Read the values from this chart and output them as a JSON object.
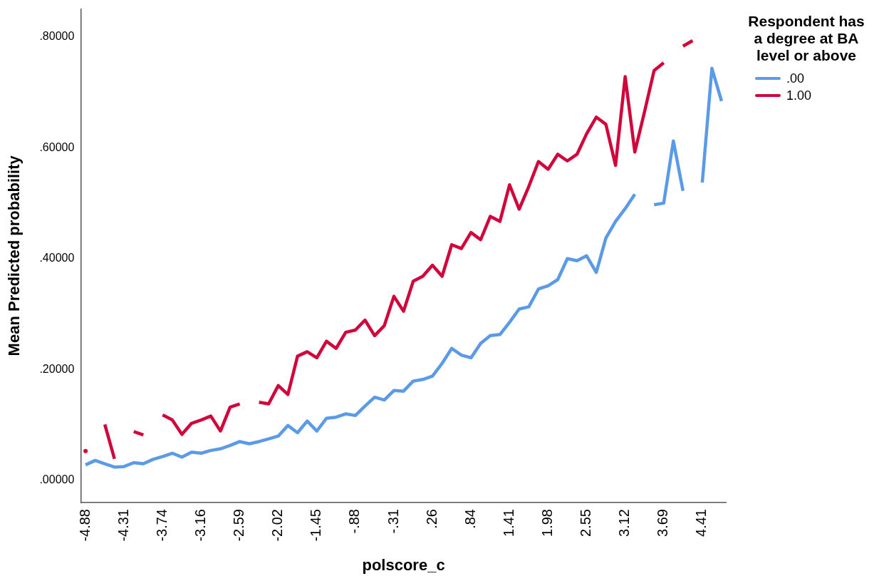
{
  "chart_data": {
    "type": "line",
    "xlabel": "polscore_c",
    "ylabel": "Mean Predicted probability",
    "legend_title": "Respondent has a degree at BA level or above",
    "legend": "top right",
    "grid": false,
    "line_style": "solid",
    "categories": [
      "-4.88",
      null,
      null,
      null,
      "-4.31",
      null,
      null,
      null,
      "-3.74",
      null,
      null,
      null,
      "-3.16",
      null,
      null,
      null,
      "-2.59",
      null,
      null,
      null,
      "-2.02",
      null,
      null,
      null,
      "-1.45",
      null,
      null,
      null,
      "-.88",
      null,
      null,
      null,
      "-.31",
      null,
      null,
      null,
      ".26",
      null,
      null,
      null,
      ".84",
      null,
      null,
      null,
      "1.41",
      null,
      null,
      null,
      "1.98",
      null,
      null,
      null,
      "2.55",
      null,
      null,
      null,
      "3.12",
      null,
      null,
      null,
      "3.69",
      null,
      null,
      null,
      "4.41",
      null,
      null
    ],
    "ylim": [
      -0.04,
      0.85
    ],
    "yticks": [
      {
        "value": 0,
        "label": ".00000"
      },
      {
        "value": 0.2,
        "label": ".20000"
      },
      {
        "value": 0.4,
        "label": ".40000"
      },
      {
        "value": 0.6,
        "label": ".60000"
      },
      {
        "value": 0.8,
        "label": ".80000"
      }
    ],
    "series": [
      {
        "name": ".00",
        "color": "#5a9ae6",
        "values": [
          0.028,
          0.036,
          0.03,
          0.024,
          0.025,
          0.032,
          0.03,
          0.038,
          0.043,
          0.049,
          0.042,
          0.051,
          0.049,
          0.054,
          0.057,
          0.063,
          0.07,
          0.066,
          0.07,
          0.075,
          0.08,
          0.099,
          0.086,
          0.107,
          0.089,
          0.112,
          0.114,
          0.12,
          0.117,
          0.134,
          0.15,
          0.145,
          0.162,
          0.161,
          0.179,
          0.182,
          0.188,
          0.211,
          0.238,
          0.226,
          0.221,
          0.247,
          0.261,
          0.263,
          0.285,
          0.309,
          0.313,
          0.345,
          0.351,
          0.362,
          0.4,
          0.396,
          0.405,
          0.375,
          0.437,
          0.467,
          0.49,
          0.516,
          null,
          0.497,
          0.5,
          0.612,
          0.522,
          null,
          0.537,
          0.743,
          0.684
        ]
      },
      {
        "name": "1.00",
        "color": "#d1063b",
        "values": [
          0.053,
          null,
          0.101,
          0.039,
          null,
          0.088,
          0.082,
          null,
          0.118,
          0.109,
          0.083,
          0.103,
          0.109,
          0.116,
          0.089,
          0.132,
          0.138,
          null,
          0.141,
          0.138,
          0.171,
          0.155,
          0.224,
          0.232,
          0.221,
          0.251,
          0.238,
          0.267,
          0.271,
          0.289,
          0.261,
          0.279,
          0.332,
          0.305,
          0.359,
          0.368,
          0.388,
          0.368,
          0.425,
          0.418,
          0.447,
          0.434,
          0.476,
          0.467,
          0.533,
          0.489,
          0.53,
          0.575,
          0.561,
          0.588,
          0.576,
          0.588,
          0.625,
          0.655,
          0.642,
          0.568,
          0.728,
          0.592,
          0.664,
          0.739,
          0.753,
          null,
          0.783,
          0.793,
          null,
          null,
          null
        ]
      }
    ]
  }
}
